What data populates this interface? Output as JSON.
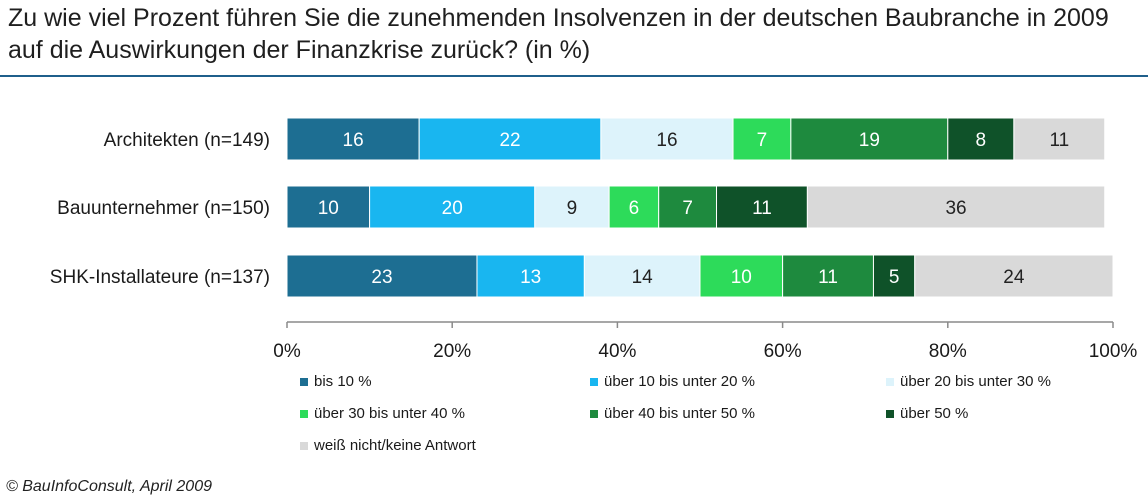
{
  "title": "Zu wie viel Prozent führen Sie die zunehmenden Insolvenzen in der deutschen Baubranche in 2009 auf die Auswirkungen der Finanzkrise zurück? (in %)",
  "footer": "© BauInfoConsult,  April 2009",
  "chart_data": {
    "type": "bar",
    "orientation": "horizontal",
    "stacked": true,
    "categories": [
      "Architekten (n=149)",
      "Bauunternehmer (n=150)",
      "SHK-Installateure (n=137)"
    ],
    "series": [
      {
        "name": "bis 10 %",
        "color": "#1d6e92",
        "label_color": "#ffffff",
        "values": [
          16,
          10,
          23
        ]
      },
      {
        "name": "über 10 bis unter 20 %",
        "color": "#19b6f0",
        "label_color": "#ffffff",
        "values": [
          22,
          20,
          13
        ]
      },
      {
        "name": "über 20 bis unter 30 %",
        "color": "#ddf3fb",
        "label_color": "#222222",
        "values": [
          16,
          9,
          14
        ]
      },
      {
        "name": "über 30 bis unter 40 %",
        "color": "#2ddb5a",
        "label_color": "#ffffff",
        "values": [
          7,
          6,
          10
        ]
      },
      {
        "name": "über 40 bis unter 50 %",
        "color": "#1e8a3e",
        "label_color": "#ffffff",
        "values": [
          19,
          7,
          11
        ]
      },
      {
        "name": "über 50 %",
        "color": "#0f5229",
        "label_color": "#ffffff",
        "values": [
          8,
          11,
          5
        ]
      },
      {
        "name": "weiß nicht/keine Antwort",
        "color": "#d9d9d9",
        "label_color": "#222222",
        "values": [
          11,
          36,
          24
        ]
      }
    ],
    "x_ticks": [
      "0%",
      "20%",
      "40%",
      "60%",
      "80%",
      "100%"
    ],
    "xlim": [
      0,
      100
    ],
    "grid": false,
    "legend_position": "bottom"
  }
}
